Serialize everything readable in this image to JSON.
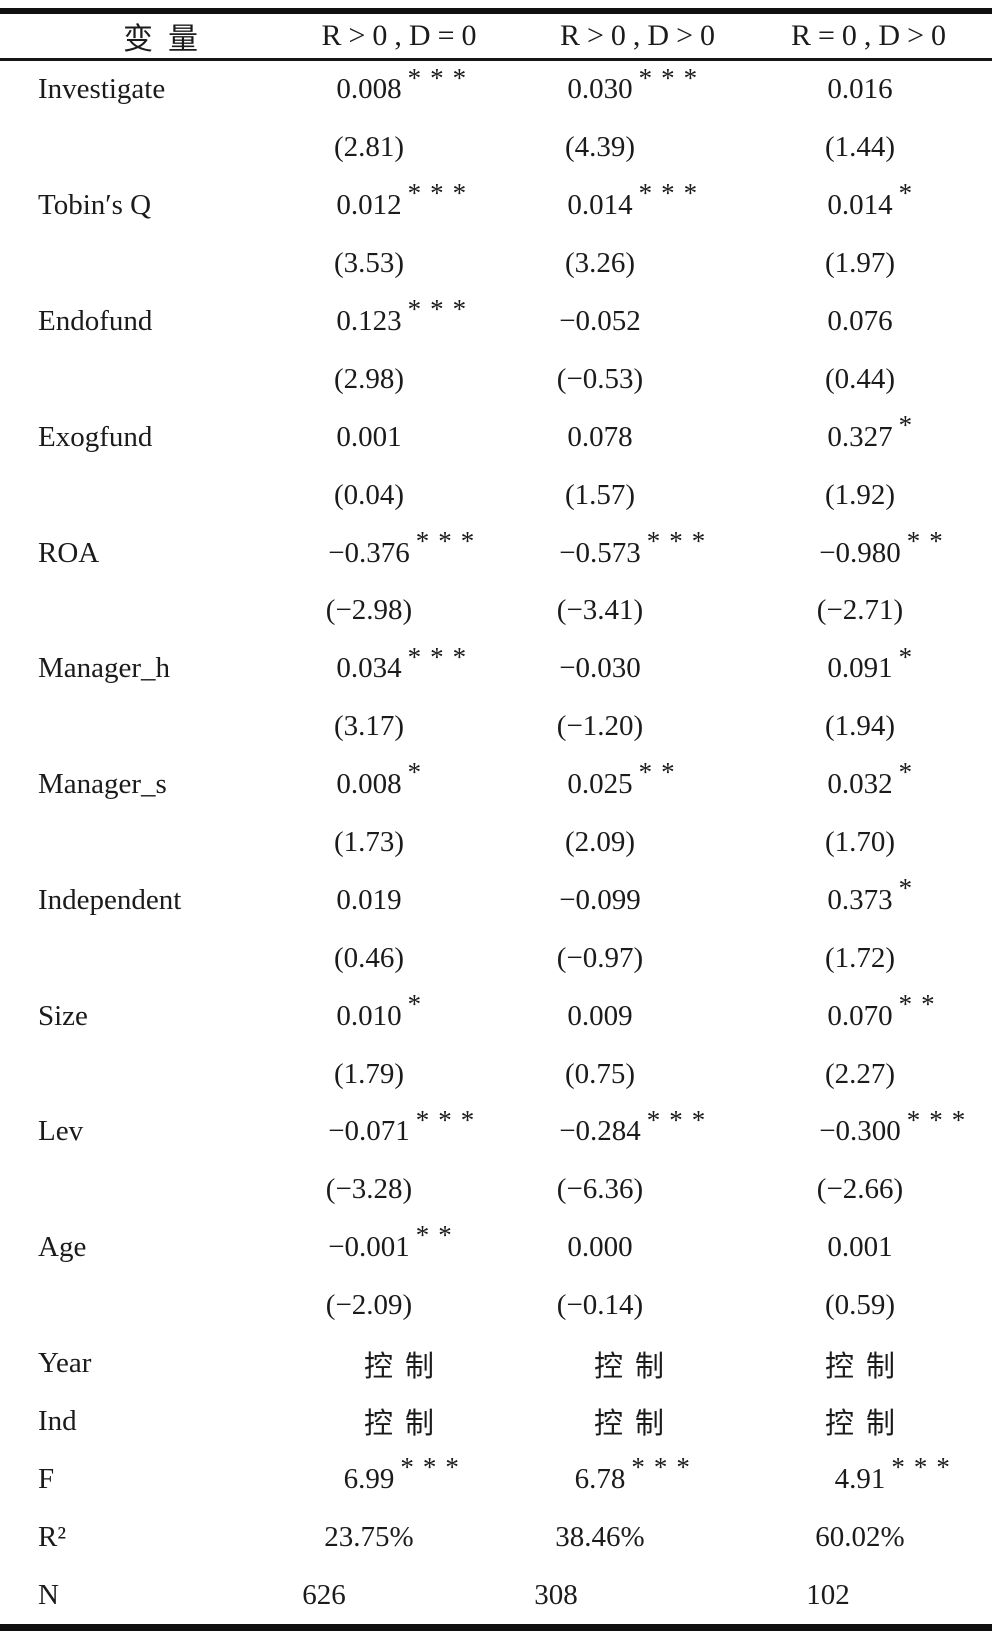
{
  "page": {
    "background": "#ffffff",
    "text_color": "#1b1b1b",
    "rule_color": "#101010"
  },
  "table": {
    "columns": [
      "变量",
      "R>0,D=0",
      "R>0,D>0",
      "R=0,D>0"
    ],
    "control_label": "控制",
    "rows": [
      {
        "label": "Investigate",
        "type": "coef",
        "cells": [
          {
            "t": "0.008",
            "s": "***"
          },
          {
            "t": "0.030",
            "s": "***"
          },
          {
            "t": "0.016",
            "s": ""
          }
        ]
      },
      {
        "label": "",
        "type": "tstat",
        "cells": [
          {
            "t": "(2.81)",
            "s": ""
          },
          {
            "t": "(4.39)",
            "s": ""
          },
          {
            "t": "(1.44)",
            "s": ""
          }
        ]
      },
      {
        "label": "Tobin′s Q",
        "type": "coef",
        "cells": [
          {
            "t": "0.012",
            "s": "***"
          },
          {
            "t": "0.014",
            "s": "***"
          },
          {
            "t": "0.014",
            "s": "*"
          }
        ]
      },
      {
        "label": "",
        "type": "tstat",
        "cells": [
          {
            "t": "(3.53)",
            "s": ""
          },
          {
            "t": "(3.26)",
            "s": ""
          },
          {
            "t": "(1.97)",
            "s": ""
          }
        ]
      },
      {
        "label": "Endofund",
        "type": "coef",
        "cells": [
          {
            "t": "0.123",
            "s": "***"
          },
          {
            "t": "−0.052",
            "s": ""
          },
          {
            "t": "0.076",
            "s": ""
          }
        ]
      },
      {
        "label": "",
        "type": "tstat",
        "cells": [
          {
            "t": "(2.98)",
            "s": ""
          },
          {
            "t": "(−0.53)",
            "s": ""
          },
          {
            "t": "(0.44)",
            "s": ""
          }
        ]
      },
      {
        "label": "Exogfund",
        "type": "coef",
        "cells": [
          {
            "t": "0.001",
            "s": ""
          },
          {
            "t": "0.078",
            "s": ""
          },
          {
            "t": "0.327",
            "s": "*"
          }
        ]
      },
      {
        "label": "",
        "type": "tstat",
        "cells": [
          {
            "t": "(0.04)",
            "s": ""
          },
          {
            "t": "(1.57)",
            "s": ""
          },
          {
            "t": "(1.92)",
            "s": ""
          }
        ]
      },
      {
        "label": "ROA",
        "type": "coef",
        "cells": [
          {
            "t": "−0.376",
            "s": "***"
          },
          {
            "t": "−0.573",
            "s": "***"
          },
          {
            "t": "−0.980",
            "s": "**"
          }
        ]
      },
      {
        "label": "",
        "type": "tstat",
        "cells": [
          {
            "t": "(−2.98)",
            "s": ""
          },
          {
            "t": "(−3.41)",
            "s": ""
          },
          {
            "t": "(−2.71)",
            "s": ""
          }
        ]
      },
      {
        "label": "Manager_h",
        "type": "coef",
        "cells": [
          {
            "t": "0.034",
            "s": "***"
          },
          {
            "t": "−0.030",
            "s": ""
          },
          {
            "t": "0.091",
            "s": "*"
          }
        ]
      },
      {
        "label": "",
        "type": "tstat",
        "cells": [
          {
            "t": "(3.17)",
            "s": ""
          },
          {
            "t": "(−1.20)",
            "s": ""
          },
          {
            "t": "(1.94)",
            "s": ""
          }
        ]
      },
      {
        "label": "Manager_s",
        "type": "coef",
        "cells": [
          {
            "t": "0.008",
            "s": "*"
          },
          {
            "t": "0.025",
            "s": "**"
          },
          {
            "t": "0.032",
            "s": "*"
          }
        ]
      },
      {
        "label": "",
        "type": "tstat",
        "cells": [
          {
            "t": "(1.73)",
            "s": ""
          },
          {
            "t": "(2.09)",
            "s": ""
          },
          {
            "t": "(1.70)",
            "s": ""
          }
        ]
      },
      {
        "label": "Independent",
        "type": "coef",
        "cells": [
          {
            "t": "0.019",
            "s": ""
          },
          {
            "t": "−0.099",
            "s": ""
          },
          {
            "t": "0.373",
            "s": "*"
          }
        ]
      },
      {
        "label": "",
        "type": "tstat",
        "cells": [
          {
            "t": "(0.46)",
            "s": ""
          },
          {
            "t": "(−0.97)",
            "s": ""
          },
          {
            "t": "(1.72)",
            "s": ""
          }
        ]
      },
      {
        "label": "Size",
        "type": "coef",
        "cells": [
          {
            "t": "0.010",
            "s": "*"
          },
          {
            "t": "0.009",
            "s": ""
          },
          {
            "t": "0.070",
            "s": "**"
          }
        ]
      },
      {
        "label": "",
        "type": "tstat",
        "cells": [
          {
            "t": "(1.79)",
            "s": ""
          },
          {
            "t": "(0.75)",
            "s": ""
          },
          {
            "t": "(2.27)",
            "s": ""
          }
        ]
      },
      {
        "label": "Lev",
        "type": "coef",
        "cells": [
          {
            "t": "−0.071",
            "s": "***"
          },
          {
            "t": "−0.284",
            "s": "***"
          },
          {
            "t": "−0.300",
            "s": "***"
          }
        ]
      },
      {
        "label": "",
        "type": "tstat",
        "cells": [
          {
            "t": "(−3.28)",
            "s": ""
          },
          {
            "t": "(−6.36)",
            "s": ""
          },
          {
            "t": "(−2.66)",
            "s": ""
          }
        ]
      },
      {
        "label": "Age",
        "type": "coef",
        "cells": [
          {
            "t": "−0.001",
            "s": "**"
          },
          {
            "t": "0.000",
            "s": ""
          },
          {
            "t": "0.001",
            "s": ""
          }
        ]
      },
      {
        "label": "",
        "type": "tstat",
        "cells": [
          {
            "t": "(−2.09)",
            "s": ""
          },
          {
            "t": "(−0.14)",
            "s": ""
          },
          {
            "t": "(0.59)",
            "s": ""
          }
        ]
      },
      {
        "label": "Year",
        "type": "control",
        "cells": [
          {
            "t": "控制",
            "s": ""
          },
          {
            "t": "控制",
            "s": ""
          },
          {
            "t": "控制",
            "s": ""
          }
        ]
      },
      {
        "label": "Ind",
        "type": "control",
        "cells": [
          {
            "t": "控制",
            "s": ""
          },
          {
            "t": "控制",
            "s": ""
          },
          {
            "t": "控制",
            "s": ""
          }
        ]
      },
      {
        "label": "F",
        "type": "stat",
        "cells": [
          {
            "t": "6.99",
            "s": "***"
          },
          {
            "t": "6.78",
            "s": "***"
          },
          {
            "t": "4.91",
            "s": "***"
          }
        ]
      },
      {
        "label": "R²",
        "type": "stat",
        "cells": [
          {
            "t": "23.75%",
            "s": ""
          },
          {
            "t": "38.46%",
            "s": ""
          },
          {
            "t": "60.02%",
            "s": ""
          }
        ]
      },
      {
        "label": "N",
        "type": "n",
        "cells": [
          {
            "t": "626",
            "s": ""
          },
          {
            "t": "308",
            "s": ""
          },
          {
            "t": "102",
            "s": ""
          }
        ]
      }
    ]
  }
}
